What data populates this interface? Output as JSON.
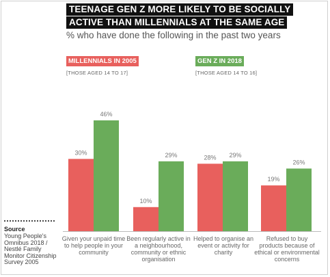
{
  "colors": {
    "series_a": "#e8605d",
    "series_b": "#6aac5a",
    "axis": "#bbbbbb"
  },
  "chart_data": {
    "type": "bar",
    "title_lines": [
      "TEENAGE GEN Z MORE LIKELY TO BE SOCIALLY",
      "ACTIVE THAN MILLENNIALS AT THE SAME AGE"
    ],
    "subtitle": "% who have done the following in the past two years",
    "categories": [
      "Given your unpaid time to help people in your community",
      "Been regularly active in a neighbourhood, community or ethnic organisation",
      "Helped to organise an event or activity for charity",
      "Refused to buy products because of ethical or environmental concerns"
    ],
    "series": [
      {
        "name": "MILLENNIALS IN 2005",
        "note": "[THOSE AGED 14 TO 17]",
        "values": [
          30,
          10,
          28,
          19
        ],
        "labels": [
          "30%",
          "10%",
          "28%",
          "19%"
        ]
      },
      {
        "name": "GEN Z IN 2018",
        "note": "[THOSE AGED 14 TO 16]",
        "values": [
          46,
          29,
          29,
          26
        ],
        "labels": [
          "46%",
          "29%",
          "29%",
          "26%"
        ]
      }
    ],
    "ylim": [
      0,
      46
    ],
    "grid": false,
    "legend_position": "top"
  },
  "source": {
    "heading": "Source",
    "text": "Young People's Omnibus 2018 / Nestlé Family Monitor Citizenship Survey 2005"
  }
}
